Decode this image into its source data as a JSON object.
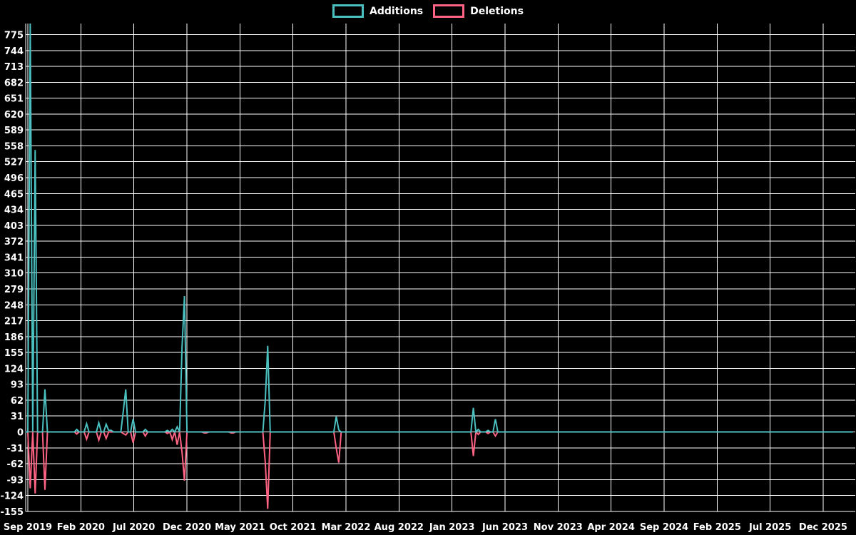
{
  "chart_data": {
    "type": "line",
    "title": "",
    "legend_position": "top-center",
    "grid": true,
    "background_color": "#000000",
    "grid_color": "#ffffff",
    "text_color": "#ffffff",
    "legend": [
      {
        "label": "Additions",
        "color": "#4bc0c0"
      },
      {
        "label": "Deletions",
        "color": "#ff6384"
      }
    ],
    "y_axis": {
      "min": -155,
      "max": 775,
      "step": 31,
      "ticks": [
        775,
        744,
        713,
        682,
        651,
        620,
        589,
        558,
        527,
        496,
        465,
        434,
        403,
        372,
        341,
        310,
        279,
        248,
        217,
        186,
        155,
        124,
        93,
        62,
        31,
        0,
        -31,
        -62,
        -93,
        -124,
        -155
      ]
    },
    "x_axis": {
      "ticks": [
        "Sep 2019",
        "Feb 2020",
        "Jul 2020",
        "Dec 2020",
        "May 2021",
        "Oct 2021",
        "Mar 2022",
        "Aug 2022",
        "Jan 2023",
        "Jun 2023",
        "Nov 2023",
        "Apr 2024",
        "Sep 2024",
        "Feb 2025",
        "Jul 2025",
        "Dec 2025"
      ],
      "weeks_per_tick_interval": 21.66,
      "total_weeks": 337
    },
    "series_note": "weekly additions/deletions; all weeks not listed below are 0 for both series; first additions spike is clipped at the top of the plot area",
    "events": [
      {
        "week": 1,
        "additions": 810,
        "deletions": -110
      },
      {
        "week": 3,
        "additions": 550,
        "deletions": -120
      },
      {
        "week": 7,
        "additions": 83,
        "deletions": -113
      },
      {
        "week": 20,
        "additions": 5,
        "deletions": -4
      },
      {
        "week": 24,
        "additions": 16,
        "deletions": -14
      },
      {
        "week": 29,
        "additions": 18,
        "deletions": -16
      },
      {
        "week": 32,
        "additions": 15,
        "deletions": -13
      },
      {
        "week": 33,
        "additions": 3,
        "deletions": 0
      },
      {
        "week": 34,
        "additions": 3,
        "deletions": 0
      },
      {
        "week": 39,
        "additions": 40,
        "deletions": -3
      },
      {
        "week": 40,
        "additions": 83,
        "deletions": -6
      },
      {
        "week": 43,
        "additions": 25,
        "deletions": -21
      },
      {
        "week": 48,
        "additions": 5,
        "deletions": -8
      },
      {
        "week": 57,
        "additions": 3,
        "deletions": -3
      },
      {
        "week": 59,
        "additions": 5,
        "deletions": -15
      },
      {
        "week": 61,
        "additions": 10,
        "deletions": -25
      },
      {
        "week": 63,
        "additions": 165,
        "deletions": -40
      },
      {
        "week": 64,
        "additions": 265,
        "deletions": -95
      },
      {
        "week": 72,
        "additions": 0,
        "deletions": -2
      },
      {
        "week": 73,
        "additions": 0,
        "deletions": -2
      },
      {
        "week": 83,
        "additions": 0,
        "deletions": -2
      },
      {
        "week": 84,
        "additions": 0,
        "deletions": -2
      },
      {
        "week": 97,
        "additions": 62,
        "deletions": -60
      },
      {
        "week": 98,
        "additions": 168,
        "deletions": -150
      },
      {
        "week": 126,
        "additions": 30,
        "deletions": -32
      },
      {
        "week": 127,
        "additions": 4,
        "deletions": -60
      },
      {
        "week": 182,
        "additions": 47,
        "deletions": -47
      },
      {
        "week": 184,
        "additions": 5,
        "deletions": -5
      },
      {
        "week": 188,
        "additions": 3,
        "deletions": -3
      },
      {
        "week": 191,
        "additions": 25,
        "deletions": -8
      }
    ]
  }
}
